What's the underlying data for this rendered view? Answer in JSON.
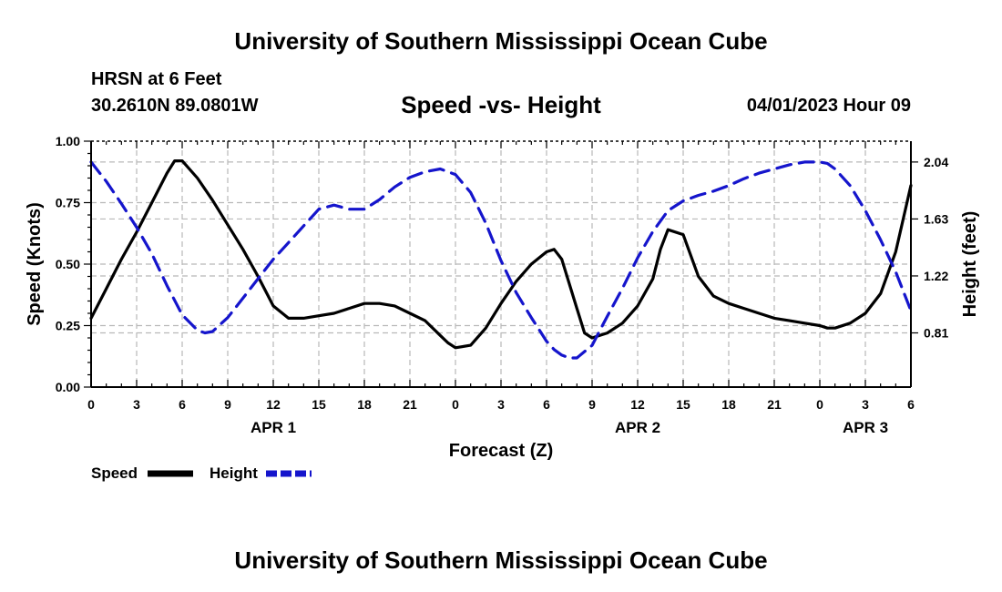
{
  "header": {
    "title": "University of Southern Mississippi Ocean Cube",
    "station": "HRSN at 6 Feet",
    "coords": "30.2610N  89.0801W",
    "subtitle": "Speed -vs- Height",
    "datetime": "04/01/2023 Hour 09"
  },
  "footer": {
    "title": "University of Southern Mississippi Ocean Cube"
  },
  "chart_data": {
    "type": "line",
    "title": "Speed -vs- Height",
    "xlabel": "Forecast (Z)",
    "ylabel": "Speed (Knots)",
    "y2label": "Height (feet)",
    "grid": true,
    "x_unit": "hours since 04/01/2023 00Z",
    "xlim": [
      0,
      54
    ],
    "x_tick_values": [
      0,
      3,
      6,
      9,
      12,
      15,
      18,
      21,
      24,
      27,
      30,
      33,
      36,
      39,
      42,
      45,
      48,
      51,
      54
    ],
    "x_tick_labels": [
      "0",
      "3",
      "6",
      "9",
      "12",
      "15",
      "18",
      "21",
      "0",
      "3",
      "6",
      "9",
      "12",
      "15",
      "18",
      "21",
      "0",
      "3",
      "6"
    ],
    "date_labels": [
      {
        "x": 12,
        "label": "APR 1"
      },
      {
        "x": 36,
        "label": "APR 2"
      },
      {
        "x": 51,
        "label": "APR 3"
      }
    ],
    "ylim": [
      0,
      1
    ],
    "y_tick_values": [
      0,
      0.25,
      0.5,
      0.75,
      1
    ],
    "y_tick_labels": [
      "0.00",
      "0.25",
      "0.50",
      "0.75",
      "1.00"
    ],
    "y2lim": [
      0.42,
      2.19
    ],
    "y2_tick_values": [
      0.81,
      1.22,
      1.63,
      2.04
    ],
    "y2_tick_labels": [
      "0.81",
      "1.22",
      "1.63",
      "2.04"
    ],
    "series": [
      {
        "name": "Speed",
        "axis": "left",
        "color": "#000000",
        "style": "solid",
        "x": [
          0,
          1,
          2,
          3,
          4,
          5,
          5.5,
          6,
          7,
          8,
          9,
          10,
          11,
          12,
          13,
          14,
          15,
          16,
          17,
          18,
          19,
          20,
          21,
          22,
          23,
          23.5,
          24,
          25,
          26,
          27,
          28,
          29,
          30,
          30.5,
          31,
          32,
          32.5,
          33,
          34,
          35,
          36,
          37,
          37.5,
          38,
          39,
          40,
          41,
          42,
          43,
          44,
          45,
          46,
          47,
          48,
          48.5,
          49,
          50,
          51,
          52,
          53,
          54
        ],
        "values": [
          0.28,
          0.4,
          0.52,
          0.63,
          0.75,
          0.87,
          0.92,
          0.92,
          0.85,
          0.76,
          0.66,
          0.56,
          0.45,
          0.33,
          0.28,
          0.28,
          0.29,
          0.3,
          0.32,
          0.34,
          0.34,
          0.33,
          0.3,
          0.27,
          0.21,
          0.18,
          0.16,
          0.17,
          0.24,
          0.34,
          0.43,
          0.5,
          0.55,
          0.56,
          0.52,
          0.32,
          0.22,
          0.2,
          0.22,
          0.26,
          0.33,
          0.44,
          0.56,
          0.64,
          0.62,
          0.45,
          0.37,
          0.34,
          0.32,
          0.3,
          0.28,
          0.27,
          0.26,
          0.25,
          0.24,
          0.24,
          0.26,
          0.3,
          0.38,
          0.55,
          0.82
        ]
      },
      {
        "name": "Height",
        "axis": "right",
        "color": "#1515cc",
        "style": "dashed",
        "x": [
          0,
          1,
          2,
          3,
          4,
          5,
          6,
          7,
          7.5,
          8,
          9,
          10,
          11,
          12,
          13,
          14,
          15,
          16,
          17,
          18,
          19,
          20,
          21,
          22,
          23,
          24,
          25,
          26,
          27,
          28,
          29,
          30,
          30.5,
          31,
          31.5,
          32,
          33,
          34,
          35,
          36,
          37,
          38,
          39,
          40,
          41,
          42,
          43,
          44,
          45,
          46,
          47,
          48,
          48.5,
          49,
          50,
          51,
          52,
          53,
          54
        ],
        "values": [
          2.04,
          1.9,
          1.74,
          1.57,
          1.38,
          1.15,
          0.94,
          0.83,
          0.81,
          0.82,
          0.92,
          1.06,
          1.2,
          1.34,
          1.46,
          1.58,
          1.7,
          1.73,
          1.7,
          1.7,
          1.77,
          1.86,
          1.93,
          1.97,
          1.99,
          1.95,
          1.82,
          1.6,
          1.33,
          1.1,
          0.92,
          0.75,
          0.69,
          0.65,
          0.63,
          0.63,
          0.72,
          0.93,
          1.13,
          1.35,
          1.54,
          1.69,
          1.76,
          1.8,
          1.83,
          1.87,
          1.92,
          1.96,
          1.99,
          2.02,
          2.04,
          2.04,
          2.03,
          1.99,
          1.87,
          1.69,
          1.48,
          1.25,
          0.97
        ]
      }
    ],
    "legend": {
      "placement": "bottom-left",
      "entries": [
        "Speed",
        "Height"
      ]
    }
  }
}
